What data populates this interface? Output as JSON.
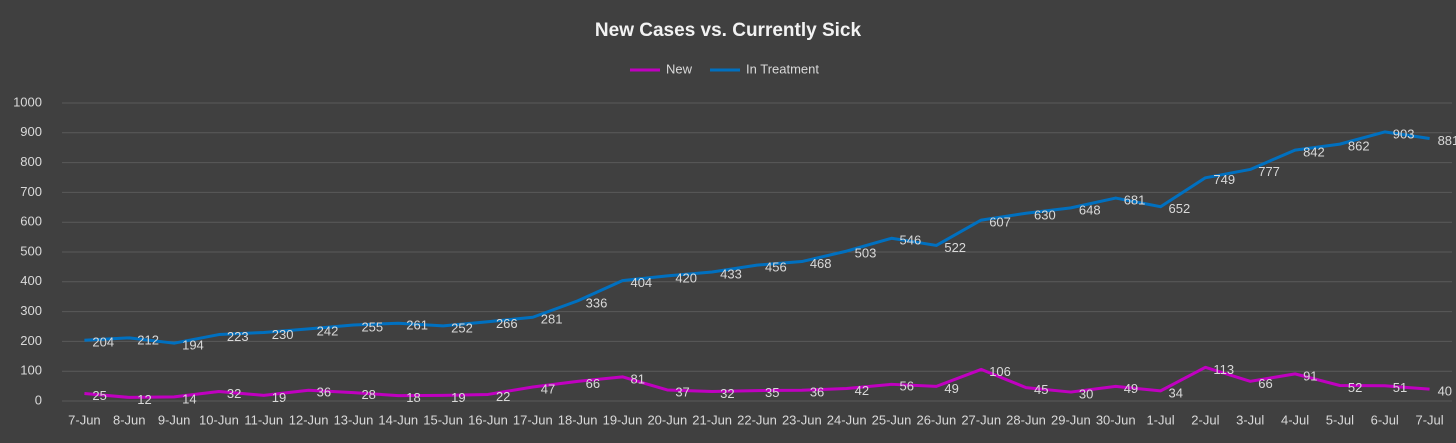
{
  "chart_data": {
    "type": "line",
    "title": "New Cases vs. Currently Sick",
    "categories": [
      "7-Jun",
      "8-Jun",
      "9-Jun",
      "10-Jun",
      "11-Jun",
      "12-Jun",
      "13-Jun",
      "14-Jun",
      "15-Jun",
      "16-Jun",
      "17-Jun",
      "18-Jun",
      "19-Jun",
      "20-Jun",
      "21-Jun",
      "22-Jun",
      "23-Jun",
      "24-Jun",
      "25-Jun",
      "26-Jun",
      "27-Jun",
      "28-Jun",
      "29-Jun",
      "30-Jun",
      "1-Jul",
      "2-Jul",
      "3-Jul",
      "4-Jul",
      "5-Jul",
      "6-Jul",
      "7-Jul"
    ],
    "series": [
      {
        "name": "New",
        "color": "#c000c0",
        "values": [
          25,
          12,
          14,
          32,
          19,
          36,
          28,
          18,
          19,
          22,
          47,
          66,
          81,
          37,
          32,
          35,
          36,
          42,
          56,
          49,
          106,
          45,
          30,
          49,
          34,
          113,
          66,
          91,
          52,
          51,
          40
        ]
      },
      {
        "name": "In Treatment",
        "color": "#0070c0",
        "values": [
          204,
          212,
          194,
          223,
          230,
          242,
          255,
          261,
          252,
          266,
          281,
          336,
          404,
          420,
          433,
          456,
          468,
          503,
          546,
          522,
          607,
          630,
          648,
          681,
          652,
          749,
          777,
          842,
          862,
          903,
          881
        ]
      }
    ],
    "ylim": [
      0,
      1000
    ],
    "yticks": [
      0,
      100,
      200,
      300,
      400,
      500,
      600,
      700,
      800,
      900,
      1000
    ],
    "grid": true,
    "legend": "top"
  }
}
